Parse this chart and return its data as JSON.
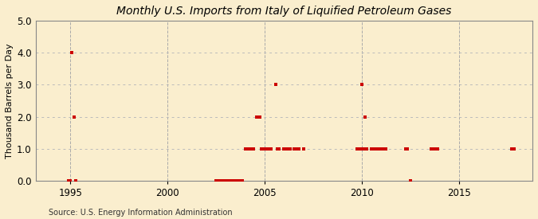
{
  "title": "Monthly U.S. Imports from Italy of Liquified Petroleum Gases",
  "ylabel": "Thousand Barrels per Day",
  "source": "Source: U.S. Energy Information Administration",
  "xlim": [
    1993.2,
    2018.8
  ],
  "ylim": [
    0.0,
    5.0
  ],
  "yticks": [
    0.0,
    1.0,
    2.0,
    3.0,
    4.0,
    5.0
  ],
  "xticks": [
    1995,
    2000,
    2005,
    2010,
    2015
  ],
  "bg_color": "#faeece",
  "plot_bg_color": "#faeece",
  "marker_color": "#cc0000",
  "grid_h_color": "#bbbbbb",
  "grid_v_color": "#aaaaaa",
  "spine_color": "#888888",
  "data_points": [
    [
      1994.917,
      0.0
    ],
    [
      1995.0,
      0.0
    ],
    [
      1995.083,
      4.0
    ],
    [
      1995.167,
      2.0
    ],
    [
      1995.25,
      0.0
    ],
    [
      2002.5,
      0.0
    ],
    [
      2002.583,
      0.0
    ],
    [
      2002.667,
      0.0
    ],
    [
      2002.75,
      0.0
    ],
    [
      2002.833,
      0.0
    ],
    [
      2002.917,
      0.0
    ],
    [
      2003.0,
      0.0
    ],
    [
      2003.083,
      0.0
    ],
    [
      2003.167,
      0.0
    ],
    [
      2003.25,
      0.0
    ],
    [
      2003.333,
      0.0
    ],
    [
      2003.417,
      0.0
    ],
    [
      2003.5,
      0.0
    ],
    [
      2003.583,
      0.0
    ],
    [
      2003.667,
      0.0
    ],
    [
      2003.75,
      0.0
    ],
    [
      2003.833,
      0.0
    ],
    [
      2004.0,
      1.0
    ],
    [
      2004.083,
      1.0
    ],
    [
      2004.25,
      1.0
    ],
    [
      2004.417,
      1.0
    ],
    [
      2004.583,
      2.0
    ],
    [
      2004.667,
      2.0
    ],
    [
      2004.75,
      2.0
    ],
    [
      2004.833,
      1.0
    ],
    [
      2005.0,
      1.0
    ],
    [
      2005.083,
      1.0
    ],
    [
      2005.167,
      1.0
    ],
    [
      2005.25,
      1.0
    ],
    [
      2005.333,
      1.0
    ],
    [
      2005.583,
      3.0
    ],
    [
      2005.667,
      1.0
    ],
    [
      2005.75,
      1.0
    ],
    [
      2006.0,
      1.0
    ],
    [
      2006.083,
      1.0
    ],
    [
      2006.25,
      1.0
    ],
    [
      2006.333,
      1.0
    ],
    [
      2006.5,
      1.0
    ],
    [
      2006.583,
      1.0
    ],
    [
      2006.667,
      1.0
    ],
    [
      2006.75,
      1.0
    ],
    [
      2007.0,
      1.0
    ],
    [
      2009.75,
      1.0
    ],
    [
      2009.833,
      1.0
    ],
    [
      2009.917,
      1.0
    ],
    [
      2010.0,
      3.0
    ],
    [
      2010.083,
      1.0
    ],
    [
      2010.167,
      2.0
    ],
    [
      2010.25,
      1.0
    ],
    [
      2010.5,
      1.0
    ],
    [
      2010.583,
      1.0
    ],
    [
      2010.667,
      1.0
    ],
    [
      2010.75,
      1.0
    ],
    [
      2010.833,
      1.0
    ],
    [
      2011.0,
      1.0
    ],
    [
      2011.083,
      1.0
    ],
    [
      2011.167,
      1.0
    ],
    [
      2011.25,
      1.0
    ],
    [
      2012.25,
      1.0
    ],
    [
      2012.333,
      1.0
    ],
    [
      2012.5,
      0.0
    ],
    [
      2013.583,
      1.0
    ],
    [
      2013.667,
      1.0
    ],
    [
      2013.75,
      1.0
    ],
    [
      2013.917,
      1.0
    ],
    [
      2017.75,
      1.0
    ],
    [
      2017.833,
      1.0
    ]
  ]
}
